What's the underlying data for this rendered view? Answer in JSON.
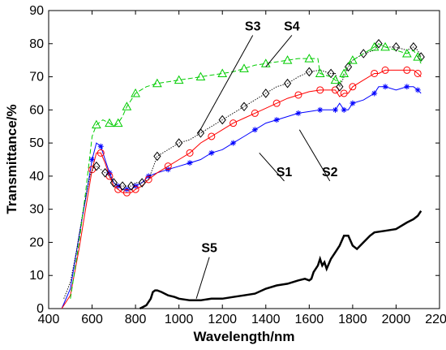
{
  "chart_data": {
    "type": "line",
    "title": "",
    "xlabel": "Wavelength/nm",
    "ylabel": "Transmittance/%",
    "xlim": [
      400,
      2200
    ],
    "ylim": [
      0,
      90
    ],
    "xticks": [
      400,
      600,
      800,
      1000,
      1200,
      1400,
      1600,
      1800,
      2000,
      2200
    ],
    "yticks": [
      0,
      10,
      20,
      30,
      40,
      50,
      60,
      70,
      80,
      90
    ],
    "grid": false,
    "legend": "none",
    "series": [
      {
        "name": "S1",
        "color": "#0000ff",
        "marker": "asterisk",
        "x": [
          460,
          500,
          540,
          570,
          600,
          620,
          640,
          660,
          680,
          700,
          720,
          740,
          760,
          780,
          800,
          830,
          860,
          900,
          950,
          1000,
          1050,
          1100,
          1150,
          1200,
          1250,
          1300,
          1350,
          1400,
          1450,
          1500,
          1550,
          1600,
          1650,
          1700,
          1720,
          1740,
          1760,
          1780,
          1800,
          1850,
          1900,
          1920,
          1950,
          2000,
          2050,
          2080,
          2100,
          2115
        ],
        "y": [
          0,
          6,
          22,
          33,
          45,
          50,
          49,
          45,
          41,
          38,
          37,
          36,
          36,
          36,
          37,
          38,
          40,
          41,
          42,
          43,
          44,
          45,
          47,
          48,
          50,
          52,
          54,
          56,
          57,
          58,
          59,
          59.5,
          60,
          60,
          60,
          62,
          60,
          60,
          62,
          63,
          65,
          67,
          67,
          66,
          67,
          67,
          66,
          65
        ]
      },
      {
        "name": "S2",
        "color": "#ff0000",
        "marker": "circle",
        "x": [
          460,
          500,
          540,
          570,
          600,
          620,
          640,
          660,
          680,
          700,
          720,
          740,
          760,
          780,
          800,
          830,
          860,
          900,
          950,
          1000,
          1050,
          1100,
          1150,
          1200,
          1250,
          1300,
          1350,
          1400,
          1450,
          1500,
          1550,
          1600,
          1650,
          1700,
          1720,
          1740,
          1760,
          1780,
          1800,
          1850,
          1900,
          1920,
          1950,
          2000,
          2050,
          2080,
          2100,
          2115
        ],
        "y": [
          0,
          4,
          18,
          30,
          42,
          47,
          47,
          44,
          40,
          37,
          36,
          35,
          35,
          35,
          36,
          37,
          39,
          41,
          43,
          45,
          47,
          50,
          52,
          54,
          56,
          57.5,
          59,
          60.5,
          62,
          63.5,
          64.5,
          65.5,
          66,
          66,
          66,
          64,
          65,
          65,
          67,
          69,
          71,
          71,
          72,
          72,
          72,
          72,
          71,
          70
        ]
      },
      {
        "name": "S3",
        "color": "#000000",
        "marker": "diamond",
        "x": [
          470,
          500,
          530,
          560,
          590,
          610,
          620,
          640,
          660,
          680,
          700,
          720,
          740,
          760,
          780,
          800,
          830,
          860,
          900,
          950,
          1000,
          1050,
          1100,
          1150,
          1200,
          1250,
          1300,
          1350,
          1400,
          1450,
          1500,
          1550,
          1600,
          1650,
          1700,
          1720,
          1740,
          1760,
          1780,
          1800,
          1850,
          1900,
          1920,
          1950,
          2000,
          2050,
          2080,
          2100,
          2115
        ],
        "y": [
          3,
          8,
          18,
          30,
          40,
          43,
          43,
          42,
          41,
          40,
          38,
          37,
          37,
          37,
          37,
          38,
          38,
          39,
          46,
          48,
          50,
          51,
          53,
          55,
          57,
          59,
          61,
          63,
          65,
          67,
          68,
          70,
          71.5,
          72,
          71,
          71,
          67,
          70,
          73,
          75,
          77,
          78,
          80,
          79,
          79,
          78,
          79,
          78,
          76
        ]
      },
      {
        "name": "S4",
        "color": "#00cc00",
        "marker": "triangle",
        "x": [
          500,
          540,
          570,
          600,
          620,
          650,
          680,
          700,
          720,
          740,
          760,
          780,
          800,
          850,
          900,
          950,
          1000,
          1050,
          1100,
          1150,
          1200,
          1250,
          1300,
          1350,
          1400,
          1450,
          1500,
          1550,
          1600,
          1640,
          1650,
          1700,
          1720,
          1740,
          1760,
          1780,
          1800,
          1850,
          1900,
          1920,
          1950,
          2000,
          2050,
          2080,
          2100,
          2115
        ],
        "y": [
          3,
          20,
          35,
          52,
          55.5,
          57,
          56,
          55,
          56,
          58,
          61,
          63,
          65,
          67,
          68,
          68.5,
          69,
          69.5,
          70,
          70.5,
          71,
          71.5,
          72.5,
          73.5,
          74,
          74.5,
          75,
          75.5,
          75.5,
          75.5,
          71,
          70,
          69,
          68,
          71,
          74,
          75,
          77,
          79,
          80,
          79,
          78,
          77,
          78,
          76,
          74
        ]
      },
      {
        "name": "S5",
        "color": "#000000",
        "marker": "none",
        "x": [
          820,
          850,
          870,
          880,
          890,
          900,
          920,
          950,
          980,
          1000,
          1050,
          1100,
          1150,
          1200,
          1250,
          1300,
          1350,
          1400,
          1450,
          1500,
          1550,
          1580,
          1600,
          1610,
          1620,
          1640,
          1650,
          1660,
          1670,
          1680,
          1700,
          1720,
          1740,
          1760,
          1770,
          1780,
          1800,
          1820,
          1850,
          1880,
          1900,
          1950,
          2000,
          2050,
          2080,
          2100,
          2115
        ],
        "y": [
          0,
          1,
          3,
          5,
          5.5,
          5.5,
          5,
          4,
          3.5,
          3,
          2.5,
          2.5,
          3,
          3,
          3.5,
          4,
          4.5,
          6,
          7,
          7.5,
          8.5,
          9,
          8.5,
          9,
          11,
          13,
          15,
          13,
          14,
          12,
          15,
          17,
          19,
          22,
          22,
          22,
          19,
          18,
          20,
          22,
          23,
          23.5,
          24,
          26,
          27,
          28,
          29.5
        ]
      }
    ],
    "annotations": [
      {
        "text": "S1",
        "x": 1485,
        "y": 40,
        "point_x": 1370,
        "point_y": 47
      },
      {
        "text": "S2",
        "x": 1695,
        "y": 40,
        "point_x": 1555,
        "point_y": 54
      },
      {
        "text": "S3",
        "x": 1340,
        "y": 84,
        "point_x": 1090,
        "point_y": 53
      },
      {
        "text": "S4",
        "x": 1520,
        "y": 84,
        "point_x": 1400,
        "point_y": 73
      },
      {
        "text": "S5",
        "x": 1140,
        "y": 17,
        "point_x": 1080,
        "point_y": 3
      }
    ]
  }
}
